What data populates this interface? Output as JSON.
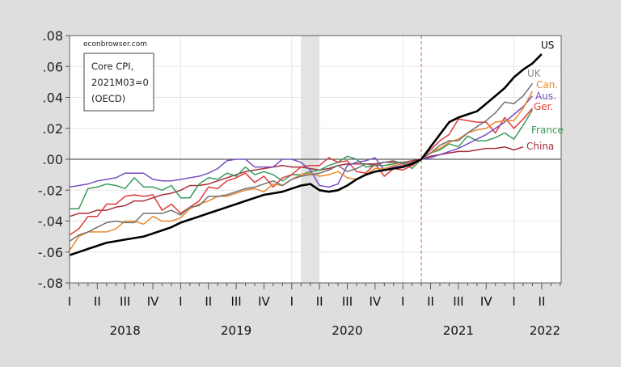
{
  "chart_data": {
    "type": "line",
    "title": "",
    "source_note": "econbrowser.com",
    "legend_box": [
      "Core CPI,",
      "2021M03=0",
      "(OECD)"
    ],
    "x_start": "2018M01",
    "x_frequency": "monthly",
    "x_range": [
      "2018M01",
      "2022M06"
    ],
    "ylim": [
      -0.08,
      0.08
    ],
    "y_ticks": [
      ".08",
      ".06",
      ".04",
      ".02",
      ".00",
      "-.02",
      "-.04",
      "-.06",
      "-.08"
    ],
    "quarter_labels": [
      "I",
      "II",
      "III",
      "IV",
      "I",
      "II",
      "III",
      "IV",
      "I",
      "II",
      "III",
      "IV",
      "I",
      "II",
      "III",
      "IV",
      "I",
      "II"
    ],
    "year_labels": [
      "2018",
      "2019",
      "2020",
      "2021",
      "2022"
    ],
    "grid": true,
    "recession_shading": [
      "2020M02",
      "2020M04"
    ],
    "reference_line": "2021M03",
    "series": [
      {
        "name": "US",
        "color": "#000000",
        "values": [
          -0.062,
          -0.06,
          -0.058,
          -0.056,
          -0.054,
          -0.053,
          -0.052,
          -0.051,
          -0.05,
          -0.048,
          -0.046,
          -0.044,
          -0.041,
          -0.039,
          -0.037,
          -0.035,
          -0.033,
          -0.031,
          -0.029,
          -0.027,
          -0.025,
          -0.023,
          -0.022,
          -0.021,
          -0.019,
          -0.017,
          -0.016,
          -0.02,
          -0.021,
          -0.02,
          -0.017,
          -0.013,
          -0.01,
          -0.008,
          -0.007,
          -0.006,
          -0.005,
          -0.003,
          0,
          0.008,
          0.016,
          0.024,
          0.027,
          0.029,
          0.031,
          0.036,
          0.041,
          0.046,
          0.053,
          0.058,
          0.062,
          0.068
        ]
      },
      {
        "name": "UK",
        "color": "#707070",
        "values": [
          -0.053,
          -0.049,
          -0.047,
          -0.044,
          -0.041,
          -0.04,
          -0.041,
          -0.041,
          -0.035,
          -0.035,
          -0.035,
          -0.033,
          -0.036,
          -0.031,
          -0.03,
          -0.024,
          -0.024,
          -0.023,
          -0.021,
          -0.019,
          -0.018,
          -0.016,
          -0.014,
          -0.017,
          -0.013,
          -0.011,
          -0.01,
          -0.009,
          -0.007,
          -0.004,
          -0.008,
          -0.006,
          -0.003,
          -0.004,
          -0.002,
          -0.001,
          -0.003,
          -0.002,
          0,
          0.004,
          0.009,
          0.012,
          0.012,
          0.017,
          0.021,
          0.025,
          0.03,
          0.037,
          0.036,
          0.041,
          0.049
        ]
      },
      {
        "name": "Can.",
        "color": "#e8892c",
        "values": [
          -0.059,
          -0.05,
          -0.047,
          -0.047,
          -0.047,
          -0.045,
          -0.04,
          -0.04,
          -0.042,
          -0.037,
          -0.04,
          -0.04,
          -0.038,
          -0.032,
          -0.029,
          -0.027,
          -0.024,
          -0.024,
          -0.022,
          -0.02,
          -0.019,
          -0.021,
          -0.016,
          -0.017,
          -0.013,
          -0.01,
          -0.009,
          -0.011,
          -0.01,
          -0.008,
          -0.012,
          -0.013,
          -0.01,
          -0.006,
          -0.006,
          -0.004,
          -0.003,
          -0.003,
          0,
          0.004,
          0.007,
          0.011,
          0.013,
          0.017,
          0.019,
          0.02,
          0.024,
          0.025,
          0.025,
          0.033,
          0.044
        ]
      },
      {
        "name": "Aus.",
        "color": "#7a4fc0",
        "values": [
          -0.018,
          -0.017,
          -0.016,
          -0.014,
          -0.013,
          -0.012,
          -0.009,
          -0.009,
          -0.009,
          -0.013,
          -0.014,
          -0.014,
          -0.013,
          -0.012,
          -0.011,
          -0.009,
          -0.006,
          -0.001,
          0,
          0,
          -0.005,
          -0.005,
          -0.005,
          0,
          0,
          -0.002,
          -0.007,
          -0.017,
          -0.018,
          -0.016,
          -0.004,
          -0.002,
          -0.001,
          0.001,
          -0.007,
          -0.005,
          -0.004,
          -0.002,
          0,
          0.001,
          0.003,
          0.005,
          0.007,
          0.01,
          0.013,
          0.016,
          0.02,
          0.024,
          0.029,
          0.034,
          0.041
        ]
      },
      {
        "name": "Ger.",
        "color": "#e03a3a",
        "values": [
          -0.049,
          -0.045,
          -0.037,
          -0.037,
          -0.029,
          -0.029,
          -0.024,
          -0.023,
          -0.024,
          -0.023,
          -0.033,
          -0.029,
          -0.035,
          -0.031,
          -0.027,
          -0.018,
          -0.019,
          -0.014,
          -0.012,
          -0.009,
          -0.015,
          -0.011,
          -0.018,
          -0.012,
          -0.01,
          -0.005,
          -0.004,
          -0.004,
          0.001,
          -0.002,
          -0.001,
          -0.008,
          -0.009,
          -0.003,
          -0.011,
          -0.006,
          -0.007,
          -0.004,
          0,
          0.006,
          0.012,
          0.016,
          0.026,
          0.025,
          0.024,
          0.024,
          0.017,
          0.027,
          0.02,
          0.026,
          0.033
        ]
      },
      {
        "name": "France",
        "color": "#3a9a5a",
        "values": [
          -0.032,
          -0.032,
          -0.019,
          -0.018,
          -0.016,
          -0.017,
          -0.019,
          -0.012,
          -0.018,
          -0.018,
          -0.02,
          -0.017,
          -0.025,
          -0.025,
          -0.016,
          -0.012,
          -0.013,
          -0.009,
          -0.011,
          -0.005,
          -0.01,
          -0.008,
          -0.01,
          -0.014,
          -0.01,
          -0.01,
          -0.008,
          -0.007,
          -0.004,
          -0.002,
          0.002,
          0.0,
          -0.005,
          -0.004,
          -0.004,
          -0.003,
          -0.002,
          -0.006,
          0,
          0.004,
          0.006,
          0.01,
          0.008,
          0.015,
          0.012,
          0.012,
          0.014,
          0.017,
          0.013,
          0.022,
          0.032
        ]
      },
      {
        "name": "China",
        "color": "#a3303a",
        "values": [
          -0.037,
          -0.035,
          -0.035,
          -0.033,
          -0.033,
          -0.031,
          -0.03,
          -0.027,
          -0.027,
          -0.025,
          -0.023,
          -0.022,
          -0.02,
          -0.017,
          -0.017,
          -0.016,
          -0.014,
          -0.012,
          -0.01,
          -0.008,
          -0.007,
          -0.006,
          -0.005,
          -0.004,
          -0.005,
          -0.005,
          -0.006,
          -0.007,
          -0.006,
          -0.004,
          -0.003,
          -0.003,
          -0.003,
          -0.003,
          -0.002,
          -0.002,
          -0.002,
          -0.001,
          0,
          0.002,
          0.003,
          0.004,
          0.005,
          0.005,
          0.006,
          0.007,
          0.007,
          0.008,
          0.006,
          0.008
        ]
      }
    ]
  }
}
